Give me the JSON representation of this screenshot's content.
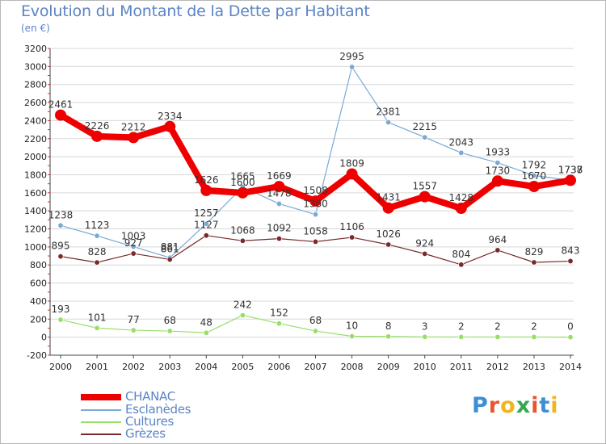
{
  "title": "Evolution du Montant de la Dette par Habitant",
  "unit": "(en €)",
  "brand": {
    "letters": [
      "P",
      "r",
      "o",
      "x",
      "i",
      "t",
      "i"
    ],
    "colors": [
      "#3b8fd4",
      "#e8542d",
      "#f2b41c",
      "#36a852",
      "#e8542d",
      "#3b8fd4",
      "#f2b41c"
    ]
  },
  "chart_data": {
    "type": "line",
    "x": [
      "2000",
      "2001",
      "2002",
      "2003",
      "2004",
      "2005",
      "2006",
      "2007",
      "2008",
      "2009",
      "2010",
      "2011",
      "2012",
      "2013",
      "2014"
    ],
    "ylim": [
      -200,
      3200
    ],
    "yticks": [
      "-200",
      "0",
      "200",
      "400",
      "600",
      "800",
      "1000",
      "1200",
      "1400",
      "1600",
      "1800",
      "2000",
      "2200",
      "2400",
      "2600",
      "2800",
      "3000",
      "3200"
    ],
    "grid": "horizontal",
    "legend_position": "bottom-left",
    "series": [
      {
        "name": "CHANAC",
        "color": "#ee0000",
        "width": "thick",
        "values": [
          2461,
          2226,
          2212,
          2334,
          1626,
          1600,
          1669,
          1508,
          1809,
          1431,
          1557,
          1428,
          1730,
          1670,
          1738
        ],
        "labels": [
          "2461",
          "2226",
          "2212",
          "2334",
          "1626",
          "1600",
          "1669",
          "1508",
          "1809",
          "1431",
          "1557",
          "1428",
          "1730",
          "1670",
          "1738"
        ]
      },
      {
        "name": "Esclanèdes",
        "color": "#7aaad6",
        "width": "thin",
        "values": [
          1238,
          1123,
          1003,
          881,
          1257,
          1665,
          1478,
          1360,
          2995,
          2381,
          2215,
          2043,
          1933,
          1792,
          1737
        ],
        "labels": [
          "1238",
          "1123",
          "1003",
          "881",
          "1257",
          "1665",
          "1478",
          "1360",
          "2995",
          "2381",
          "2215",
          "2043",
          "1933",
          "1792",
          "1737"
        ]
      },
      {
        "name": "Cultures",
        "color": "#9ade6a",
        "width": "thin",
        "values": [
          193,
          101,
          77,
          68,
          48,
          242,
          152,
          68,
          10,
          8,
          3,
          2,
          2,
          2,
          0
        ],
        "labels": [
          "193",
          "101",
          "77",
          "68",
          "48",
          "242",
          "152",
          "68",
          "10",
          "8",
          "3",
          "2",
          "2",
          "2",
          "0"
        ]
      },
      {
        "name": "Grèzes",
        "color": "#7a2a2a",
        "width": "thin",
        "values": [
          895,
          828,
          927,
          861,
          1127,
          1068,
          1092,
          1058,
          1106,
          1026,
          924,
          804,
          964,
          829,
          843
        ],
        "labels": [
          "895",
          "828",
          "927",
          "861",
          "1127",
          "1068",
          "1092",
          "1058",
          "1106",
          "1026",
          "924",
          "804",
          "964",
          "829",
          "843"
        ]
      }
    ]
  }
}
